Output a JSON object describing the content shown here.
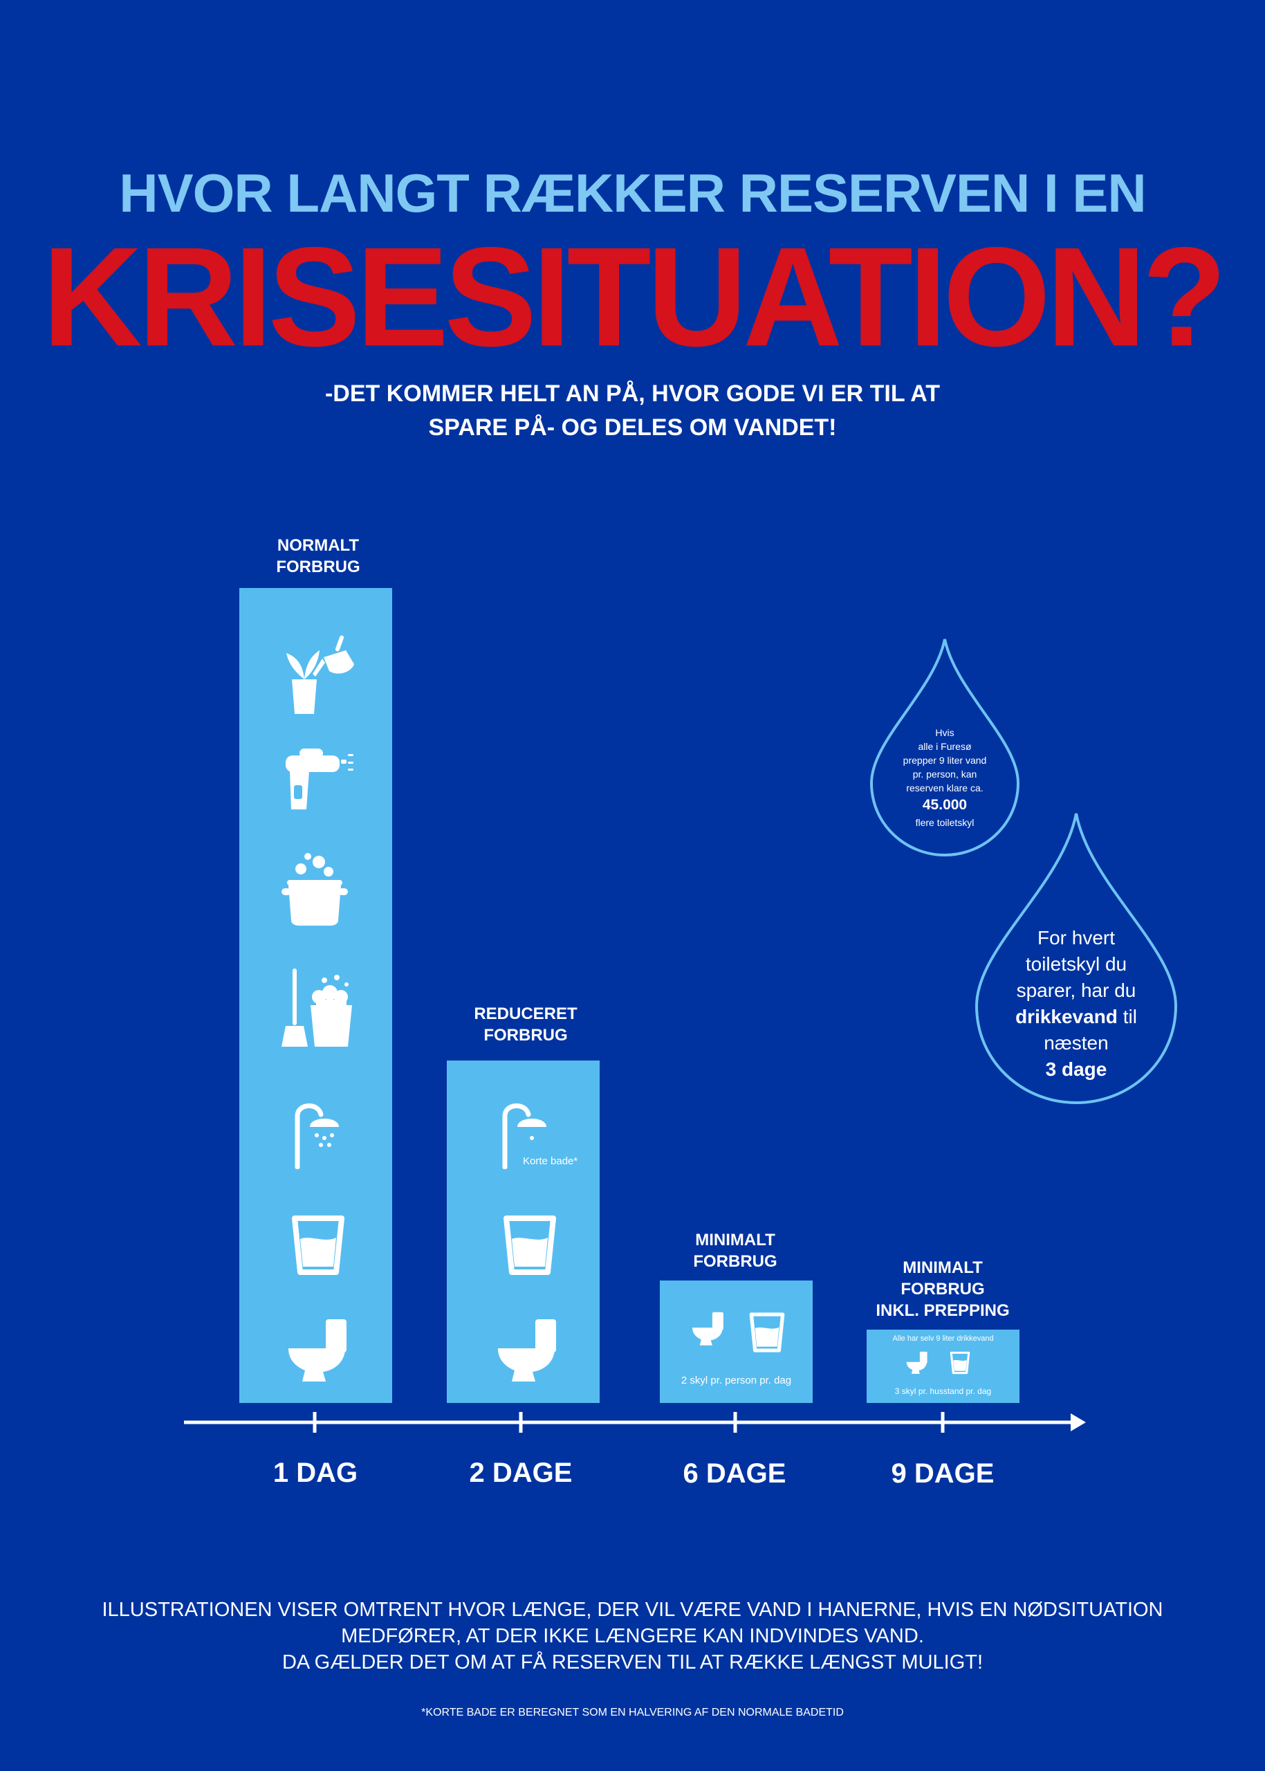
{
  "title": {
    "line1": "HVOR LANGT RÆKKER RESERVEN I EN",
    "line2": "KRISESITUATION?"
  },
  "subtitle": {
    "line1": "-DET KOMMER HELT AN PÅ, HVOR GODE VI ER TIL AT",
    "line2": "SPARE PÅ- OG DELES OM VANDET!"
  },
  "colors": {
    "background": "#0133a0",
    "bar": "#56bcf0",
    "title_top": "#7fc8f3",
    "title_main": "#d6121c"
  },
  "chart_data": {
    "type": "bar",
    "categories": [
      "1 DAG",
      "2 DAGE",
      "6 DAGE",
      "9 DAGE"
    ],
    "bars": [
      {
        "label_line1": "NORMALT",
        "label_line2": "FORBRUG",
        "label_line3": "",
        "relative_level": 1.0,
        "icons": [
          "watering-plant-icon",
          "water-gun-icon",
          "cooking-pot-icon",
          "cleaning-bucket-icon",
          "shower-icon",
          "water-glass-icon",
          "toilet-icon"
        ]
      },
      {
        "label_line1": "REDUCERET",
        "label_line2": "FORBRUG",
        "label_line3": "",
        "relative_level": 0.42,
        "icons": [
          "shower-icon",
          "water-glass-icon",
          "toilet-icon"
        ],
        "note": "Korte bade*"
      },
      {
        "label_line1": "MINIMALT",
        "label_line2": "FORBRUG",
        "label_line3": "",
        "relative_level": 0.15,
        "icons": [
          "toilet-icon",
          "water-glass-icon"
        ],
        "note": "2 skyl pr. person pr. dag"
      },
      {
        "label_line1": "MINIMALT",
        "label_line2": "FORBRUG",
        "label_line3": "INKL. PREPPING",
        "relative_level": 0.09,
        "icons": [
          "toilet-icon",
          "water-glass-icon"
        ],
        "top_note": "Alle har selv 9 liter drikkevand",
        "note": "3 skyl pr. husstand pr. dag"
      }
    ]
  },
  "drop_small": {
    "line1": "Hvis",
    "line2": "alle i Furesø",
    "line3": "prepper 9 liter vand",
    "line4": "pr. person, kan",
    "line5": "reserven klare ca.",
    "value": "45.000",
    "line6": "flere toiletskyl"
  },
  "drop_large": {
    "line1": "For hvert",
    "line2": "toiletskyl du",
    "line3": "sparer, har du",
    "bold1": "drikkevand",
    "line4_rest": " til",
    "line5": "næsten",
    "bold2": "3 dage"
  },
  "footer": {
    "line1": "ILLUSTRATIONEN VISER OMTRENT HVOR LÆNGE, DER VIL VÆRE VAND I HANERNE, HVIS EN NØDSITUATION",
    "line2": "MEDFØRER, AT DER IKKE LÆNGERE KAN INDVINDES VAND.",
    "line3": "DA GÆLDER DET OM AT FÅ RESERVEN TIL AT RÆKKE LÆNGST MULIGT!",
    "footnote": "*KORTE BADE ER BEREGNET SOM EN HALVERING AF DEN NORMALE BADETID"
  }
}
